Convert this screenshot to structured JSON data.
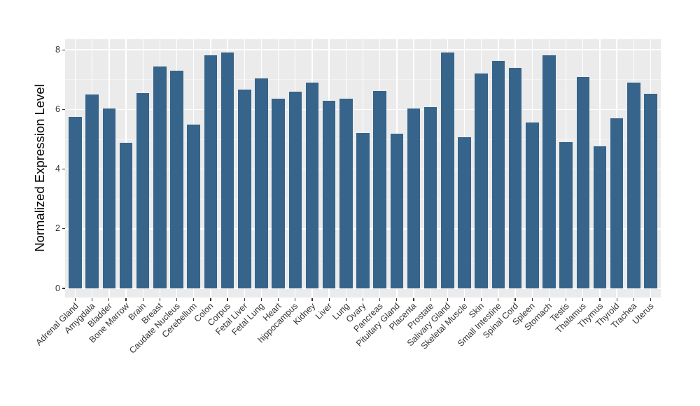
{
  "figure": {
    "background_color": "#ffffff"
  },
  "chart_data": {
    "type": "bar",
    "title": "",
    "xlabel": "",
    "ylabel": "Normalized Expression Level",
    "categories": [
      "Adrenal Gland",
      "Amygdala",
      "Bladder",
      "Bone Marrow",
      "Brain",
      "Breast",
      "Caudate Nucleus",
      "Cerebellum",
      "Colon",
      "Corpus",
      "Fetal Liver",
      "Fetal Lung",
      "Heart",
      "hippocampus",
      "Kidney",
      "Liver",
      "Lung",
      "Ovary",
      "Pancreas",
      "Pituitary Gland",
      "Placenta",
      "Prostate",
      "Salivary Gland",
      "Skeletal Muscle",
      "Skin",
      "Small Intestine",
      "Spinal Cord",
      "Spleen",
      "Stomach",
      "Testis",
      "Thalamus",
      "Thymus",
      "Thyroid",
      "Trachea",
      "Uterus"
    ],
    "values": [
      5.75,
      6.51,
      6.03,
      4.89,
      6.56,
      7.43,
      7.29,
      5.5,
      7.81,
      7.92,
      6.67,
      7.05,
      6.35,
      6.59,
      6.9,
      6.29,
      6.36,
      5.22,
      6.61,
      5.18,
      6.04,
      6.08,
      7.91,
      5.06,
      7.2,
      7.64,
      7.39,
      5.57,
      7.82,
      4.91,
      7.08,
      4.77,
      5.7,
      6.9,
      6.52
    ],
    "yticks": [
      0,
      2,
      4,
      6,
      8
    ],
    "y_minor_ticks": [
      1,
      3,
      5,
      7
    ],
    "ylim": [
      0,
      8.4
    ],
    "x_tick_rotation_deg": 45,
    "grid": "on",
    "legend": "none",
    "colors": {
      "bar": "#36648B",
      "panel_background": "#EBEBEB",
      "major_gridline": "#FFFFFF",
      "minor_gridline": "#F4F4F4",
      "axis_text": "#333333",
      "axis_title": "#000000",
      "tick_mark": "#333333"
    }
  }
}
